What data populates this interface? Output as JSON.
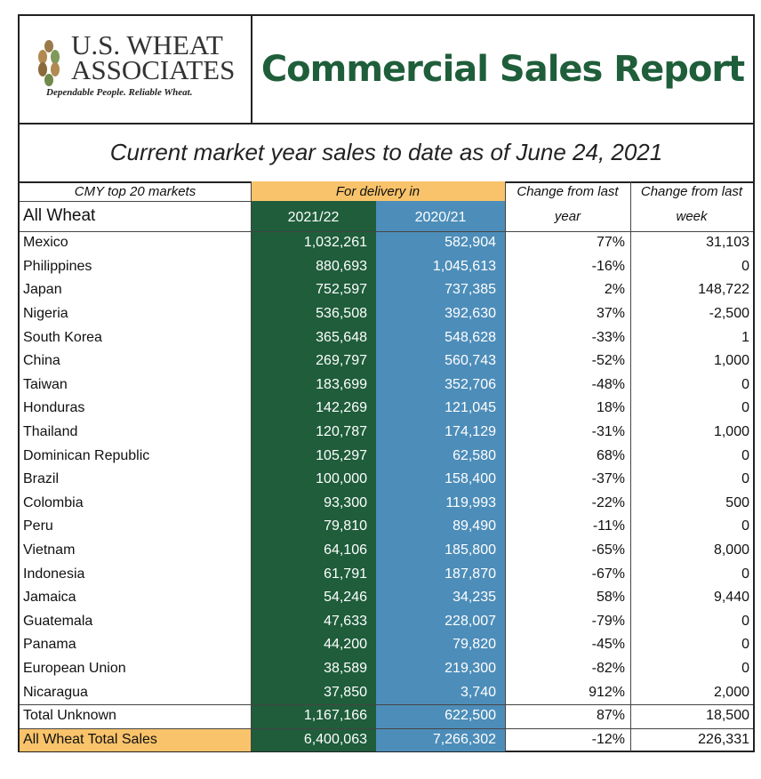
{
  "logo": {
    "line1": "U.S. WHEAT",
    "line2": "ASSOCIATES",
    "tagline": "Dependable People. Reliable Wheat."
  },
  "report_title": "Commercial Sales Report",
  "subtitle": "Current market year sales to date as of June 24, 2021",
  "headers": {
    "markets": "CMY top 20 markets",
    "category": "All Wheat",
    "for_delivery": "For delivery in",
    "year_a": "2021/22",
    "year_b": "2020/21",
    "change_year_l1": "Change from last",
    "change_year_l2": "year",
    "change_week_l1": "Change from last",
    "change_week_l2": "week"
  },
  "rows": [
    {
      "name": "Mexico",
      "a": "1,032,261",
      "b": "582,904",
      "c": "77%",
      "d": "31,103"
    },
    {
      "name": "Philippines",
      "a": "880,693",
      "b": "1,045,613",
      "c": "-16%",
      "d": "0"
    },
    {
      "name": "Japan",
      "a": "752,597",
      "b": "737,385",
      "c": "2%",
      "d": "148,722"
    },
    {
      "name": "Nigeria",
      "a": "536,508",
      "b": "392,630",
      "c": "37%",
      "d": "-2,500"
    },
    {
      "name": "South Korea",
      "a": "365,648",
      "b": "548,628",
      "c": "-33%",
      "d": "1"
    },
    {
      "name": "China",
      "a": "269,797",
      "b": "560,743",
      "c": "-52%",
      "d": "1,000"
    },
    {
      "name": "Taiwan",
      "a": "183,699",
      "b": "352,706",
      "c": "-48%",
      "d": "0"
    },
    {
      "name": "Honduras",
      "a": "142,269",
      "b": "121,045",
      "c": "18%",
      "d": "0"
    },
    {
      "name": "Thailand",
      "a": "120,787",
      "b": "174,129",
      "c": "-31%",
      "d": "1,000"
    },
    {
      "name": "Dominican Republic",
      "a": "105,297",
      "b": "62,580",
      "c": "68%",
      "d": "0"
    },
    {
      "name": "Brazil",
      "a": "100,000",
      "b": "158,400",
      "c": "-37%",
      "d": "0"
    },
    {
      "name": "Colombia",
      "a": "93,300",
      "b": "119,993",
      "c": "-22%",
      "d": "500"
    },
    {
      "name": "Peru",
      "a": "79,810",
      "b": "89,490",
      "c": "-11%",
      "d": "0"
    },
    {
      "name": "Vietnam",
      "a": "64,106",
      "b": "185,800",
      "c": "-65%",
      "d": "8,000"
    },
    {
      "name": "Indonesia",
      "a": "61,791",
      "b": "187,870",
      "c": "-67%",
      "d": "0"
    },
    {
      "name": "Jamaica",
      "a": "54,246",
      "b": "34,235",
      "c": "58%",
      "d": "9,440"
    },
    {
      "name": "Guatemala",
      "a": "47,633",
      "b": "228,007",
      "c": "-79%",
      "d": "0"
    },
    {
      "name": "Panama",
      "a": "44,200",
      "b": "79,820",
      "c": "-45%",
      "d": "0"
    },
    {
      "name": "European Union",
      "a": "38,589",
      "b": "219,300",
      "c": "-82%",
      "d": "0"
    },
    {
      "name": "Nicaragua",
      "a": "37,850",
      "b": "3,740",
      "c": "912%",
      "d": "2,000"
    }
  ],
  "total_unknown": {
    "name": "Total Unknown",
    "a": "1,167,166",
    "b": "622,500",
    "c": "87%",
    "d": "18,500"
  },
  "total_sales": {
    "name": "All Wheat Total Sales",
    "a": "6,400,063",
    "b": "7,266,302",
    "c": "-12%",
    "d": "226,331"
  },
  "colors": {
    "dark_green": "#1f5d3b",
    "steel_blue": "#4d8db9",
    "orange_header": "#f8c36a",
    "title_green": "#1f5e3a"
  }
}
